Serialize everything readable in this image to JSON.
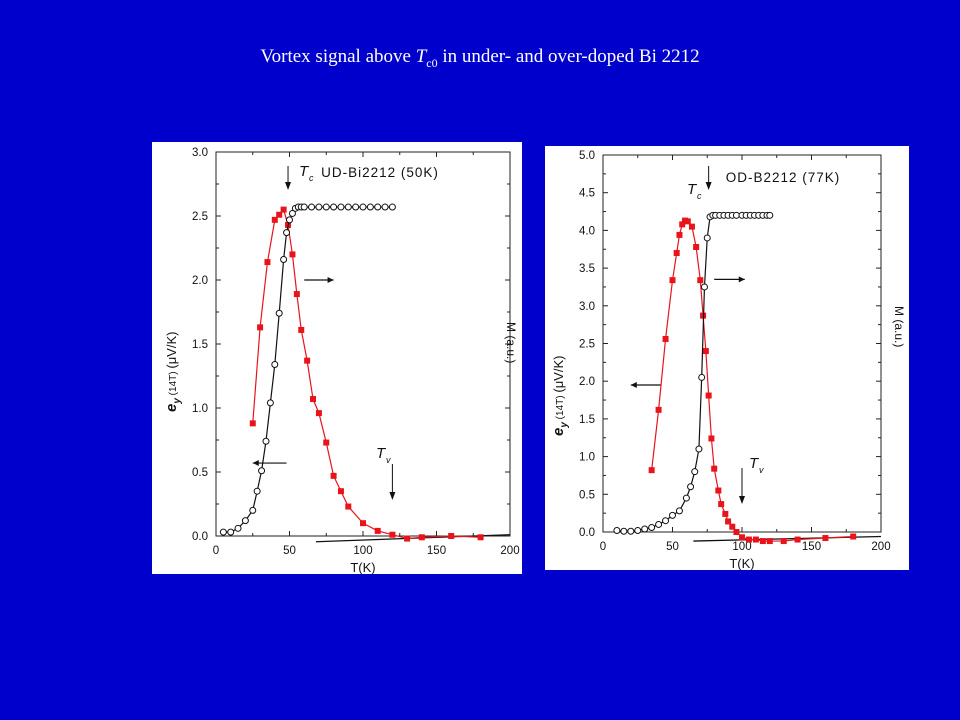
{
  "slide": {
    "background": "#0000cc",
    "title": {
      "pre": "Vortex signal above ",
      "sym": "T",
      "sub": "c0",
      "post": " in under- and over-doped Bi 2212"
    }
  },
  "chart_data": [
    {
      "type": "scatter",
      "title": "UD-Bi2212 (50K)",
      "xlabel": "T(K)",
      "ylabel": "e_y (14T) (μV/K)",
      "ylabel_parts": {
        "main": "e",
        "sub": "y",
        "mid": "(14T)",
        "unit": "(μV/K)"
      },
      "y2label": "M (a.u.)",
      "xlim": [
        0,
        200
      ],
      "ylim": [
        0,
        3.0
      ],
      "xticks": [
        "0",
        "50",
        "100",
        "150",
        "200"
      ],
      "yticks": [
        "0.0",
        "0.5",
        "1.0",
        "1.5",
        "2.0",
        "2.5",
        "3.0"
      ],
      "annotations": {
        "tc": "T",
        "tc_sub": "c",
        "tv": "T",
        "tv_sub": "v"
      },
      "series": [
        {
          "marker": "filled-square",
          "color": "#e8141c",
          "x": [
            25,
            30,
            35,
            40,
            43,
            46,
            49,
            52,
            55,
            58,
            62,
            66,
            70,
            75,
            80,
            85,
            90,
            100,
            110,
            120,
            130,
            140,
            160,
            180
          ],
          "y": [
            0.88,
            1.63,
            2.14,
            2.47,
            2.51,
            2.55,
            2.43,
            2.2,
            1.89,
            1.61,
            1.37,
            1.07,
            0.96,
            0.73,
            0.47,
            0.35,
            0.23,
            0.1,
            0.04,
            0.01,
            -0.02,
            -0.01,
            0.0,
            -0.01
          ]
        },
        {
          "marker": "open-circle",
          "color": "#111111",
          "x": [
            5,
            10,
            15,
            20,
            25,
            28,
            31,
            34,
            37,
            40,
            43,
            46,
            48,
            50,
            52,
            54,
            56,
            58,
            60,
            65,
            70,
            75,
            80,
            85,
            90,
            95,
            100,
            105,
            110,
            115,
            120
          ],
          "y": [
            0.03,
            0.03,
            0.06,
            0.12,
            0.2,
            0.35,
            0.51,
            0.74,
            1.04,
            1.34,
            1.74,
            2.16,
            2.37,
            2.47,
            2.52,
            2.56,
            2.57,
            2.57,
            2.57,
            2.57,
            2.57,
            2.57,
            2.57,
            2.57,
            2.57,
            2.57,
            2.57,
            2.57,
            2.57,
            2.57,
            2.57
          ]
        }
      ]
    },
    {
      "type": "scatter",
      "title": "OD-B2212 (77K)",
      "xlabel": "T(K)",
      "ylabel": "e_y (14T) (μV/K)",
      "ylabel_parts": {
        "main": "e",
        "sub": "y",
        "mid": "(14T)",
        "unit": "(μV/K)"
      },
      "y2label": "M (a.u.)",
      "xlim": [
        0,
        200
      ],
      "ylim": [
        0,
        5.0
      ],
      "xticks": [
        "0",
        "50",
        "100",
        "150",
        "200"
      ],
      "yticks": [
        "0.0",
        "0.5",
        "1.0",
        "1.5",
        "2.0",
        "2.5",
        "3.0",
        "3.5",
        "4.0",
        "4.5",
        "5.0"
      ],
      "annotations": {
        "tc": "T",
        "tc_sub": "c",
        "tv": "T",
        "tv_sub": "v"
      },
      "series": [
        {
          "marker": "filled-square",
          "color": "#e8141c",
          "x": [
            35,
            40,
            45,
            50,
            53,
            55,
            57,
            59,
            61,
            64,
            67,
            70,
            72,
            74,
            76,
            78,
            80,
            83,
            85,
            88,
            90,
            93,
            96,
            100,
            105,
            110,
            115,
            120,
            130,
            140,
            160,
            180
          ],
          "y": [
            0.82,
            1.62,
            2.56,
            3.34,
            3.7,
            3.94,
            4.08,
            4.13,
            4.12,
            4.05,
            3.78,
            3.34,
            2.87,
            2.4,
            1.81,
            1.24,
            0.84,
            0.55,
            0.37,
            0.24,
            0.14,
            0.07,
            0.0,
            -0.07,
            -0.1,
            -0.1,
            -0.12,
            -0.12,
            -0.12,
            -0.1,
            -0.08,
            -0.06
          ]
        },
        {
          "marker": "open-circle",
          "color": "#111111",
          "x": [
            10,
            15,
            20,
            25,
            30,
            35,
            40,
            45,
            50,
            55,
            60,
            63,
            66,
            69,
            71,
            73,
            75,
            77,
            79,
            81,
            84,
            87,
            90,
            93,
            96,
            100,
            103,
            106,
            109,
            112,
            115,
            118,
            120
          ],
          "y": [
            0.02,
            0.01,
            0.01,
            0.02,
            0.04,
            0.06,
            0.1,
            0.15,
            0.22,
            0.28,
            0.45,
            0.6,
            0.8,
            1.1,
            2.05,
            3.25,
            3.9,
            4.18,
            4.2,
            4.2,
            4.2,
            4.2,
            4.2,
            4.2,
            4.2,
            4.2,
            4.2,
            4.2,
            4.2,
            4.2,
            4.2,
            4.2,
            4.2
          ]
        }
      ]
    }
  ]
}
